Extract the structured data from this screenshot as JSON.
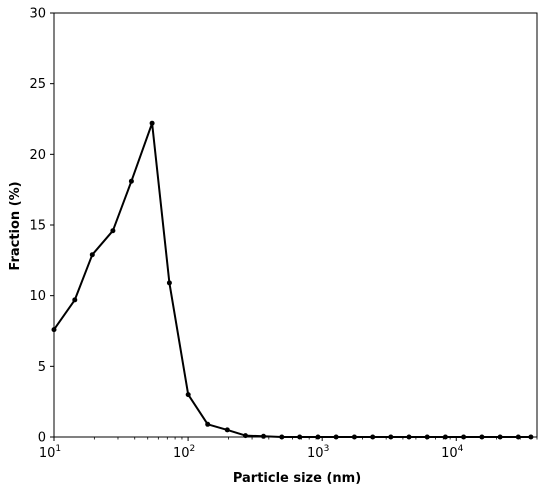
{
  "chart_data": {
    "type": "line",
    "xlabel": "Particle size (nm)",
    "ylabel": "Fraction (%)",
    "xscale": "log",
    "xlim": [
      10,
      40000
    ],
    "ylim": [
      0,
      30
    ],
    "yticks": [
      0,
      5,
      10,
      15,
      20,
      25,
      30
    ],
    "xticks": [
      {
        "value": 10,
        "base": "10",
        "exp": "1"
      },
      {
        "value": 100,
        "base": "10",
        "exp": "2"
      },
      {
        "value": 1000,
        "base": "10",
        "exp": "3"
      },
      {
        "value": 10000,
        "base": "10",
        "exp": "4"
      }
    ],
    "grid": false,
    "series_color": "#000000",
    "series": [
      {
        "x": [
          10,
          14.3,
          19.3,
          27.5,
          37.8,
          53.9,
          72.5,
          100.2,
          140,
          196,
          268,
          365,
          500,
          680,
          930,
          1270,
          1740,
          2380,
          3250,
          4440,
          6070,
          8300,
          11350,
          15520,
          21210,
          29000,
          36000
        ],
        "y": [
          7.6,
          9.7,
          12.9,
          14.6,
          18.1,
          22.2,
          10.9,
          3.0,
          0.9,
          0.5,
          0.1,
          0.05,
          0,
          0,
          0,
          0,
          0,
          0,
          0,
          0,
          0,
          0,
          0,
          0,
          0,
          0,
          0
        ]
      }
    ]
  }
}
